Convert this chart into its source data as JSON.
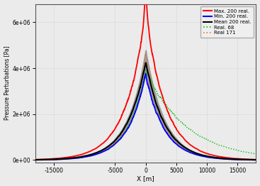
{
  "title": "",
  "xlabel": "X [m]",
  "ylabel": "Pressure Perturbations [Pa]",
  "xlim": [
    -18000,
    18000
  ],
  "ylim": [
    -100000,
    6800000
  ],
  "yticks": [
    0,
    2000000,
    4000000,
    6000000
  ],
  "ytick_labels": [
    "0e+00",
    "2e+06",
    "4e+06",
    "6e+06"
  ],
  "xticks": [
    -15000,
    -5000,
    0,
    5000,
    10000,
    15000
  ],
  "xtick_labels": [
    "-15000",
    "-5000",
    "0",
    "5000",
    "10000",
    "15000"
  ],
  "legend_entries": [
    "Max. 200 real.",
    "Min. 200 real.",
    "Mean 200 real.",
    "Real. 68",
    "Real 171"
  ],
  "legend_colors": [
    "#ff0000",
    "#0000ff",
    "#000000",
    "#00bb00",
    "#e87722"
  ],
  "grid_color": "#c8c8c8",
  "fill_color": "#888888",
  "background_color": "#ebebeb"
}
